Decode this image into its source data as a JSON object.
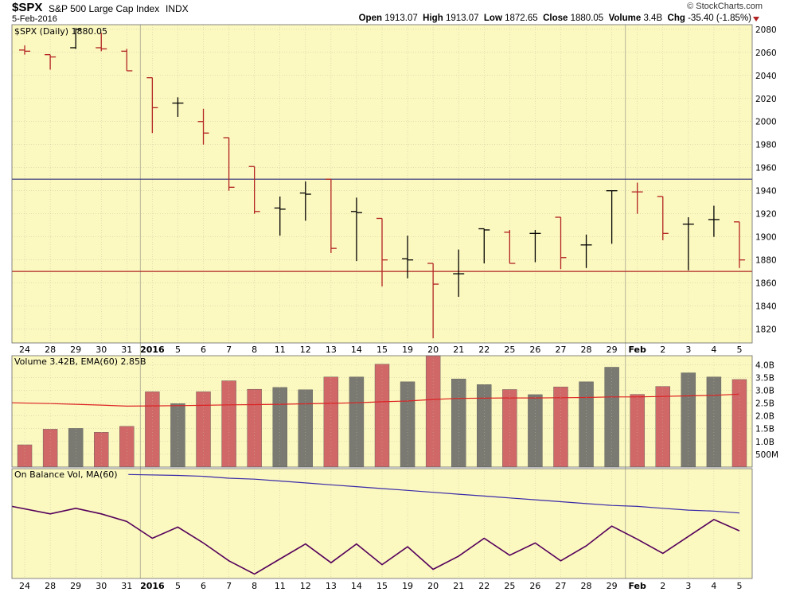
{
  "header": {
    "symbol": "$SPX",
    "name": "S&P 500 Large Cap Index",
    "exchange": "INDX",
    "date": "5-Feb-2016",
    "credit": "© StockCharts.com",
    "quote": {
      "open_label": "Open",
      "open": "1913.07",
      "high_label": "High",
      "high": "1913.07",
      "low_label": "Low",
      "low": "1872.65",
      "close_label": "Close",
      "close": "1880.05",
      "volume_label": "Volume",
      "volume": "3.4B",
      "chg_label": "Chg",
      "chg": "-35.40 (-1.85%)"
    }
  },
  "panels": {
    "price_legend": "$SPX (Daily) 1880.05",
    "volume_legend": "Volume 3.42B, EMA(60) 2.85B",
    "obv_legend": "On Balance Vol, MA(60)"
  },
  "colors": {
    "background": "#fbf8c0",
    "up": "#000000",
    "down": "#b22222",
    "vol_up": "#7a7a72",
    "vol_down": "#d06868",
    "ema": "#dd2222",
    "obv": "#55005a",
    "obv_ma": "#3a2aa8",
    "resistance": "#2a2a7a",
    "support": "#b22222",
    "grid": "#c9c6a2"
  },
  "chart_data": {
    "type": "ohlc",
    "x_labels": [
      "24",
      "28",
      "29",
      "30",
      "31",
      "2016",
      "5",
      "6",
      "7",
      "8",
      "11",
      "12",
      "13",
      "14",
      "15",
      "19",
      "20",
      "21",
      "22",
      "25",
      "26",
      "27",
      "28",
      "29",
      "Feb",
      "2",
      "3",
      "4",
      "5"
    ],
    "price": {
      "y_ticks": [
        1820,
        1840,
        1860,
        1880,
        1900,
        1920,
        1940,
        1960,
        1980,
        2000,
        2020,
        2040,
        2060,
        2080
      ],
      "ylim": [
        1808,
        2084
      ],
      "bars": [
        {
          "o": 2062,
          "h": 2066,
          "l": 2058,
          "c": 2061,
          "dir": "down"
        },
        {
          "o": 2058,
          "h": 2058,
          "l": 2045,
          "c": 2056,
          "dir": "down"
        },
        {
          "o": 2064,
          "h": 2081,
          "l": 2063,
          "c": 2080,
          "dir": "up"
        },
        {
          "o": 2064,
          "h": 2077,
          "l": 2061,
          "c": 2063,
          "dir": "down"
        },
        {
          "o": 2061,
          "h": 2063,
          "l": 2044,
          "c": 2044,
          "dir": "down"
        },
        {
          "o": 2038,
          "h": 2038,
          "l": 1990,
          "c": 2012,
          "dir": "down"
        },
        {
          "o": 2016,
          "h": 2021,
          "l": 2004,
          "c": 2016,
          "dir": "up"
        },
        {
          "o": 2000,
          "h": 2011,
          "l": 1980,
          "c": 1990,
          "dir": "down"
        },
        {
          "o": 1986,
          "h": 1986,
          "l": 1940,
          "c": 1943,
          "dir": "down"
        },
        {
          "o": 1961,
          "h": 1961,
          "l": 1920,
          "c": 1922,
          "dir": "down"
        },
        {
          "o": 1925,
          "h": 1935,
          "l": 1901,
          "c": 1924,
          "dir": "up"
        },
        {
          "o": 1938,
          "h": 1948,
          "l": 1914,
          "c": 1937,
          "dir": "up"
        },
        {
          "o": 1950,
          "h": 1950,
          "l": 1886,
          "c": 1890,
          "dir": "down"
        },
        {
          "o": 1922,
          "h": 1934,
          "l": 1879,
          "c": 1921,
          "dir": "up"
        },
        {
          "o": 1916,
          "h": 1916,
          "l": 1857,
          "c": 1880,
          "dir": "down"
        },
        {
          "o": 1881,
          "h": 1901,
          "l": 1864,
          "c": 1880,
          "dir": "up"
        },
        {
          "o": 1877,
          "h": 1877,
          "l": 1812,
          "c": 1859,
          "dir": "down"
        },
        {
          "o": 1868,
          "h": 1889,
          "l": 1848,
          "c": 1868,
          "dir": "up"
        },
        {
          "o": 1907,
          "h": 1907,
          "l": 1877,
          "c": 1906,
          "dir": "up"
        },
        {
          "o": 1904,
          "h": 1906,
          "l": 1877,
          "c": 1877,
          "dir": "down"
        },
        {
          "o": 1903,
          "h": 1906,
          "l": 1878,
          "c": 1903,
          "dir": "up"
        },
        {
          "o": 1917,
          "h": 1917,
          "l": 1872,
          "c": 1882,
          "dir": "down"
        },
        {
          "o": 1893,
          "h": 1902,
          "l": 1873,
          "c": 1893,
          "dir": "up"
        },
        {
          "o": 1940,
          "h": 1940,
          "l": 1894,
          "c": 1940,
          "dir": "up"
        },
        {
          "o": 1939,
          "h": 1947,
          "l": 1920,
          "c": 1939,
          "dir": "down"
        },
        {
          "o": 1935,
          "h": 1935,
          "l": 1897,
          "c": 1903,
          "dir": "down"
        },
        {
          "o": 1911,
          "h": 1917,
          "l": 1871,
          "c": 1911,
          "dir": "up"
        },
        {
          "o": 1915,
          "h": 1927,
          "l": 1900,
          "c": 1915,
          "dir": "up"
        },
        {
          "o": 1913,
          "h": 1913,
          "l": 1873,
          "c": 1880,
          "dir": "down"
        }
      ],
      "resistance_level": 1950,
      "support_level": 1870
    },
    "volume": {
      "y_ticks": [
        {
          "v": 0.5,
          "label": "500M"
        },
        {
          "v": 1.0,
          "label": "1.0B"
        },
        {
          "v": 1.5,
          "label": "1.5B"
        },
        {
          "v": 2.0,
          "label": "2.0B"
        },
        {
          "v": 2.5,
          "label": "2.5B"
        },
        {
          "v": 3.0,
          "label": "3.0B"
        },
        {
          "v": 3.5,
          "label": "3.5B"
        },
        {
          "v": 4.0,
          "label": "4.0B"
        }
      ],
      "ylim": [
        0,
        4.35
      ],
      "values": [
        0.87,
        1.48,
        1.51,
        1.36,
        1.59,
        2.94,
        2.48,
        2.94,
        3.37,
        3.04,
        3.11,
        3.02,
        3.52,
        3.52,
        4.02,
        3.33,
        4.38,
        3.44,
        3.22,
        3.03,
        2.83,
        3.13,
        3.33,
        3.9,
        2.84,
        3.15,
        3.68,
        3.52,
        3.42
      ],
      "ema": [
        2.51,
        2.48,
        2.45,
        2.42,
        2.38,
        2.39,
        2.4,
        2.41,
        2.43,
        2.44,
        2.45,
        2.47,
        2.49,
        2.51,
        2.55,
        2.58,
        2.64,
        2.68,
        2.69,
        2.7,
        2.7,
        2.71,
        2.72,
        2.74,
        2.74,
        2.76,
        2.78,
        2.8,
        2.85
      ]
    },
    "obv": {
      "ylim": [
        0,
        100
      ],
      "values": [
        70,
        62,
        68,
        62,
        54,
        36,
        48,
        31,
        12,
        -2,
        14,
        30,
        10,
        30,
        8,
        27,
        3,
        17,
        36,
        18,
        31,
        12,
        28,
        49,
        35,
        20,
        38,
        56,
        44
      ],
      "ma": [
        null,
        null,
        null,
        null,
        null,
        104,
        103,
        102,
        100,
        99,
        97,
        95,
        93,
        91,
        89,
        87,
        85,
        83,
        81,
        79,
        77,
        75,
        73,
        71,
        70,
        68,
        66,
        65,
        63
      ]
    }
  }
}
